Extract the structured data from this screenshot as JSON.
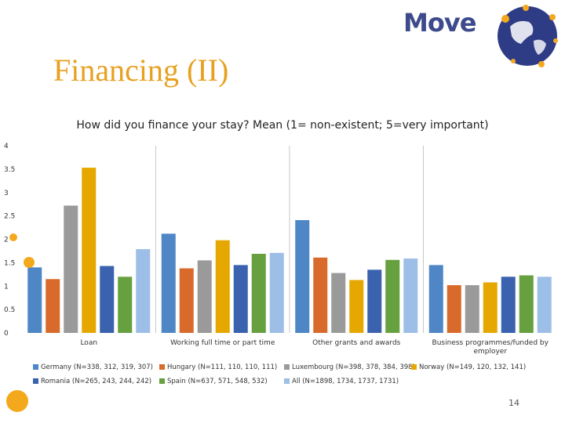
{
  "slide": {
    "title": "Financing (II)",
    "logo_text": "Move",
    "page_number": "14"
  },
  "chart_data": {
    "type": "bar",
    "title": "How did you  finance your stay? Mean (1= non-existent; 5=very important)",
    "categories": [
      "Loan",
      "Working full time or part time",
      "Other grants and awards",
      "Business programmes/funded by employer"
    ],
    "ylim": [
      0,
      4
    ],
    "yticks": [
      0,
      0.5,
      1,
      1.5,
      2,
      2.5,
      3,
      3.5,
      4
    ],
    "grid": false,
    "legend_position": "bottom",
    "series": [
      {
        "name": "Germany (N=338, 312, 319, 307)",
        "color": "#4E86C6",
        "values": [
          1.4,
          2.12,
          2.41,
          1.45
        ]
      },
      {
        "name": "Hungary (N=111, 110, 110, 111)",
        "color": "#D86B2B",
        "values": [
          1.15,
          1.38,
          1.61,
          1.02
        ]
      },
      {
        "name": "Luxembourg (N=398, 378, 384, 398)",
        "color": "#9A9A9A",
        "values": [
          2.72,
          1.55,
          1.28,
          1.02
        ]
      },
      {
        "name": "Norway (N=149, 120, 132, 141)",
        "color": "#E6A800",
        "values": [
          3.53,
          1.98,
          1.13,
          1.08
        ]
      },
      {
        "name": "Romania (N=265, 243, 244, 242)",
        "color": "#3A62AE",
        "values": [
          1.43,
          1.45,
          1.35,
          1.2
        ]
      },
      {
        "name": "Spain (N=637, 571, 548, 532)",
        "color": "#67A03E",
        "values": [
          1.2,
          1.69,
          1.56,
          1.23
        ]
      },
      {
        "name": "All (N=1898, 1734, 1737, 1731)",
        "color": "#9DBEE6",
        "values": [
          1.79,
          1.71,
          1.59,
          1.2
        ]
      }
    ]
  }
}
